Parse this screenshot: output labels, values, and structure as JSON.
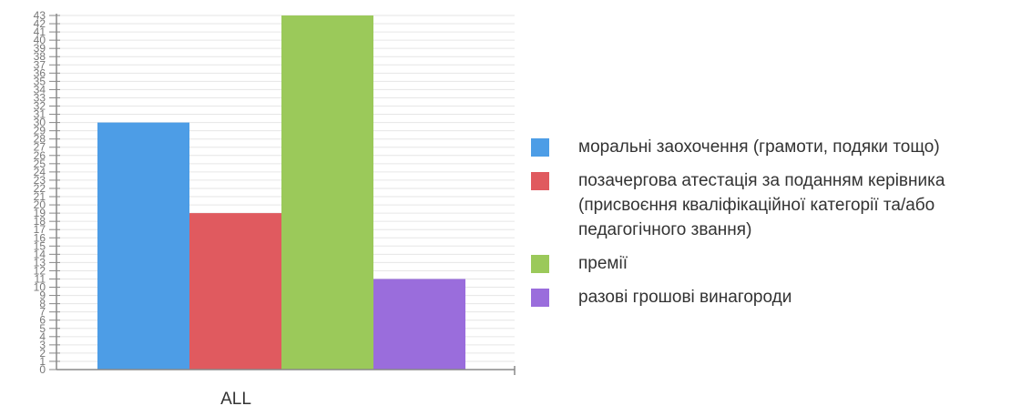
{
  "chart_data": {
    "type": "bar",
    "categories": [
      "ALL"
    ],
    "ylim": [
      0,
      43
    ],
    "y_ticks_step": 1,
    "grid": true,
    "legend_position": "right",
    "series": [
      {
        "name": "моральні заохочення (грамоти, подяки тощо)",
        "values": [
          30
        ],
        "color": "#4d9de6"
      },
      {
        "name": "позачергова атестація за поданням керівника (присвоєння кваліфікаційної категорії та/або педагогічного звання)",
        "values": [
          19
        ],
        "color": "#e05a5f"
      },
      {
        "name": "премії",
        "values": [
          43
        ],
        "color": "#9bc95a"
      },
      {
        "name": "разові грошові винагороди",
        "values": [
          11
        ],
        "color": "#9a6ddc"
      }
    ]
  }
}
